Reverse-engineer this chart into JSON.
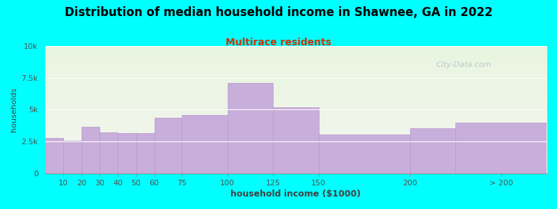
{
  "title": "Distribution of median household income in Shawnee, GA in 2022",
  "subtitle": "Multirace residents",
  "xlabel": "household income ($1000)",
  "ylabel": "households",
  "background_color": "#00FFFF",
  "bar_color": "#c8aeda",
  "bar_edge_color": "#b898cc",
  "bar_values": [
    2800,
    2550,
    3650,
    3200,
    3150,
    3150,
    4350,
    4600,
    7100,
    5200,
    3050,
    3550,
    4000
  ],
  "bar_left": [
    0,
    10,
    20,
    30,
    40,
    50,
    60,
    75,
    100,
    125,
    150,
    200,
    225
  ],
  "bar_right": [
    10,
    20,
    30,
    40,
    50,
    60,
    75,
    100,
    125,
    150,
    200,
    225,
    275
  ],
  "ylim": [
    0,
    10000
  ],
  "yticks": [
    0,
    2500,
    5000,
    7500,
    10000
  ],
  "ytick_labels": [
    "0",
    "2.5k",
    "5k",
    "7.5k",
    "10k"
  ],
  "xtick_positions": [
    10,
    20,
    30,
    40,
    50,
    60,
    75,
    100,
    125,
    150,
    200,
    250
  ],
  "xtick_labels": [
    "10",
    "20",
    "30",
    "40",
    "50",
    "60",
    "75",
    "100",
    "125",
    "150",
    "200",
    "> 200"
  ],
  "xlim": [
    0,
    275
  ],
  "watermark": "City-Data.com",
  "title_fontsize": 12,
  "subtitle_fontsize": 10,
  "subtitle_color": "#cc3300",
  "title_color": "#000000",
  "tick_color": "#505050",
  "label_color": "#404040"
}
